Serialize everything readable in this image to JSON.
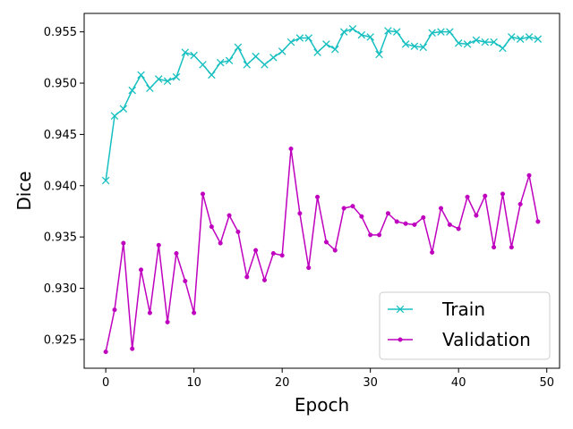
{
  "chart_data": {
    "type": "line",
    "xlabel": "Epoch",
    "ylabel": "Dice",
    "xlim": [
      -2.45,
      51.45
    ],
    "ylim": [
      0.9222,
      0.9568
    ],
    "xticks": [
      0,
      10,
      20,
      30,
      40,
      50
    ],
    "xtick_labels": [
      "0",
      "10",
      "20",
      "30",
      "40",
      "50"
    ],
    "yticks": [
      0.925,
      0.93,
      0.935,
      0.94,
      0.945,
      0.95,
      0.955
    ],
    "ytick_labels": [
      "0.925",
      "0.930",
      "0.935",
      "0.940",
      "0.945",
      "0.950",
      "0.955"
    ],
    "grid": false,
    "legend_position": "lower-right",
    "x": [
      0,
      1,
      2,
      3,
      4,
      5,
      6,
      7,
      8,
      9,
      10,
      11,
      12,
      13,
      14,
      15,
      16,
      17,
      18,
      19,
      20,
      21,
      22,
      23,
      24,
      25,
      26,
      27,
      28,
      29,
      30,
      31,
      32,
      33,
      34,
      35,
      36,
      37,
      38,
      39,
      40,
      41,
      42,
      43,
      44,
      45,
      46,
      47,
      48,
      49
    ],
    "series": [
      {
        "name": "Train",
        "color": "#17bfc0",
        "marker": "x",
        "values": [
          0.9405,
          0.9468,
          0.9475,
          0.9493,
          0.9508,
          0.9495,
          0.9504,
          0.9502,
          0.9506,
          0.953,
          0.9527,
          0.9518,
          0.9508,
          0.952,
          0.9522,
          0.9535,
          0.9518,
          0.9526,
          0.9518,
          0.9525,
          0.9531,
          0.954,
          0.9544,
          0.9544,
          0.953,
          0.9538,
          0.9533,
          0.955,
          0.9553,
          0.9547,
          0.9545,
          0.9528,
          0.9551,
          0.955,
          0.9538,
          0.9536,
          0.9535,
          0.9549,
          0.955,
          0.955,
          0.9539,
          0.9538,
          0.9542,
          0.954,
          0.954,
          0.9534,
          0.9545,
          0.9543,
          0.9545,
          0.9543
        ]
      },
      {
        "name": "Validation",
        "color": "#bf00bf",
        "marker": "dot",
        "values": [
          0.9238,
          0.9279,
          0.9344,
          0.9241,
          0.9318,
          0.9276,
          0.9342,
          0.9267,
          0.9334,
          0.9307,
          0.9276,
          0.9392,
          0.936,
          0.9344,
          0.9371,
          0.9355,
          0.9311,
          0.9337,
          0.9308,
          0.9334,
          0.9332,
          0.9436,
          0.9373,
          0.932,
          0.9389,
          0.9345,
          0.9337,
          0.9378,
          0.938,
          0.937,
          0.9352,
          0.9352,
          0.9373,
          0.9365,
          0.9363,
          0.9362,
          0.9369,
          0.9335,
          0.9378,
          0.9362,
          0.9358,
          0.9389,
          0.9371,
          0.939,
          0.934,
          0.9392,
          0.934,
          0.9382,
          0.941,
          0.9365
        ]
      }
    ]
  }
}
